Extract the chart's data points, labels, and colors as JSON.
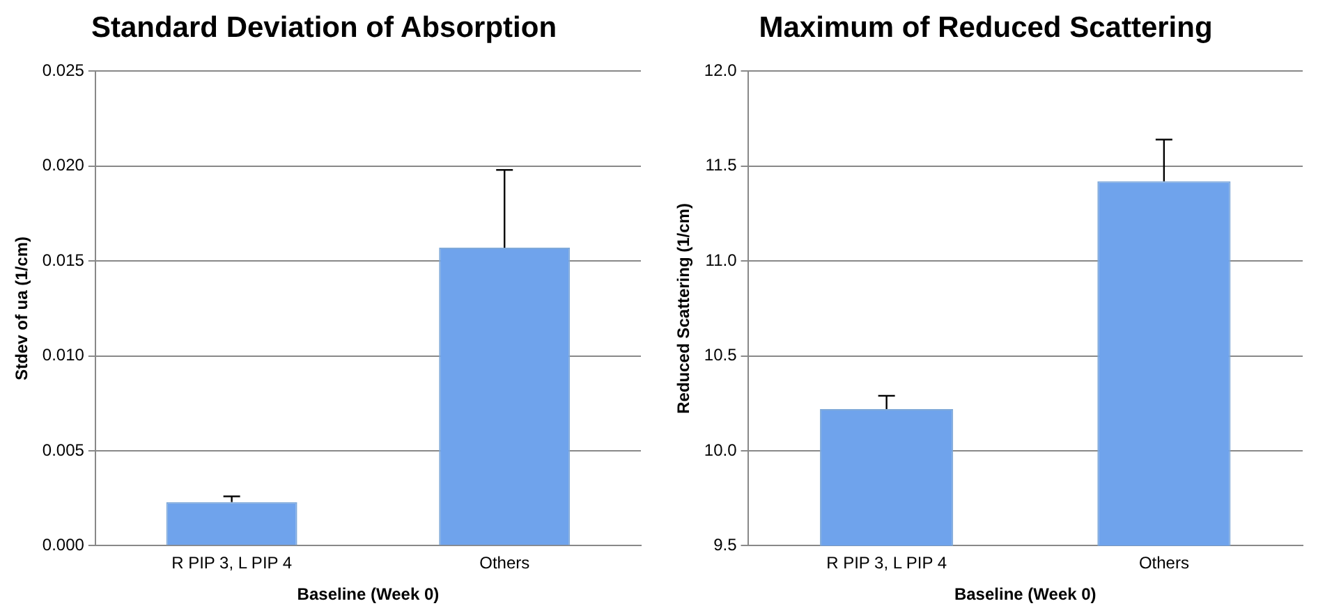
{
  "chart_data": [
    {
      "type": "bar",
      "title": "Standard Deviation of Absorption",
      "xlabel": "Baseline (Week 0)",
      "ylabel": "Stdev of ua (1/cm)",
      "categories": [
        "R PIP 3, L PIP 4",
        "Others"
      ],
      "values": [
        0.0023,
        0.0157
      ],
      "errors": [
        [
          0.0023,
          0.0026
        ],
        [
          0.0157,
          0.0198
        ]
      ],
      "color": "#6fa3ec",
      "ylim": [
        0,
        0.025
      ],
      "yticks": [
        {
          "value": 0,
          "label": "0.000"
        },
        {
          "value": 0.005,
          "label": "0.005"
        },
        {
          "value": 0.01,
          "label": "0.010"
        },
        {
          "value": 0.015,
          "label": "0.015"
        },
        {
          "value": 0.02,
          "label": "0.020"
        },
        {
          "value": 0.025,
          "label": "0.025"
        }
      ],
      "grid": "y"
    },
    {
      "type": "bar",
      "title": "Maximum of Reduced Scattering",
      "xlabel": "Baseline (Week 0)",
      "ylabel": "Reduced Scattering (1/cm)",
      "categories": [
        "R PIP 3, L PIP 4",
        "Others"
      ],
      "values": [
        10.22,
        11.42
      ],
      "errors": [
        [
          10.22,
          10.29
        ],
        [
          11.42,
          11.64
        ]
      ],
      "color": "#6fa3ec",
      "ylim": [
        9.5,
        12
      ],
      "yticks": [
        {
          "value": 9.5,
          "label": "9.5"
        },
        {
          "value": 10,
          "label": "10.0"
        },
        {
          "value": 10.5,
          "label": "10.5"
        },
        {
          "value": 11,
          "label": "11.0"
        },
        {
          "value": 11.5,
          "label": "11.5"
        },
        {
          "value": 12,
          "label": "12.0"
        }
      ],
      "grid": "y"
    }
  ]
}
